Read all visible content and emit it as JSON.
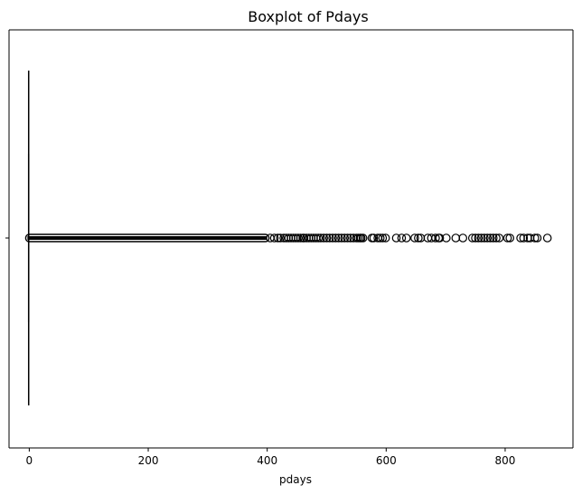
{
  "chart_data": {
    "type": "boxplot",
    "title": "Boxplot of Pdays",
    "xlabel": "pdays",
    "ylabel": "",
    "orientation": "horizontal",
    "xlim": [
      -34,
      914
    ],
    "xticks": [
      0,
      200,
      400,
      600,
      800
    ],
    "xtick_labels": [
      "0",
      "200",
      "400",
      "600",
      "800"
    ],
    "ytick_labels": [
      ""
    ],
    "box": {
      "q1": -1,
      "median": -1,
      "q3": -1,
      "whisker_low": -1,
      "whisker_high": -1
    },
    "outlier_dense_range": [
      0,
      397
    ],
    "outliers": [
      405,
      412,
      418,
      422,
      428,
      432,
      436,
      440,
      444,
      448,
      452,
      456,
      460,
      462,
      466,
      470,
      474,
      478,
      482,
      486,
      490,
      495,
      500,
      505,
      510,
      515,
      520,
      525,
      530,
      535,
      540,
      545,
      550,
      553,
      556,
      558,
      561,
      576,
      579,
      586,
      590,
      594,
      599,
      617,
      626,
      634,
      648,
      654,
      658,
      670,
      676,
      683,
      688,
      690,
      701,
      717,
      729,
      745,
      750,
      755,
      760,
      765,
      770,
      775,
      780,
      785,
      790,
      804,
      808,
      826,
      831,
      838,
      842,
      850,
      854,
      871
    ],
    "colors": {
      "box": "#000000",
      "marker": "#000000",
      "axis": "#000000"
    }
  }
}
